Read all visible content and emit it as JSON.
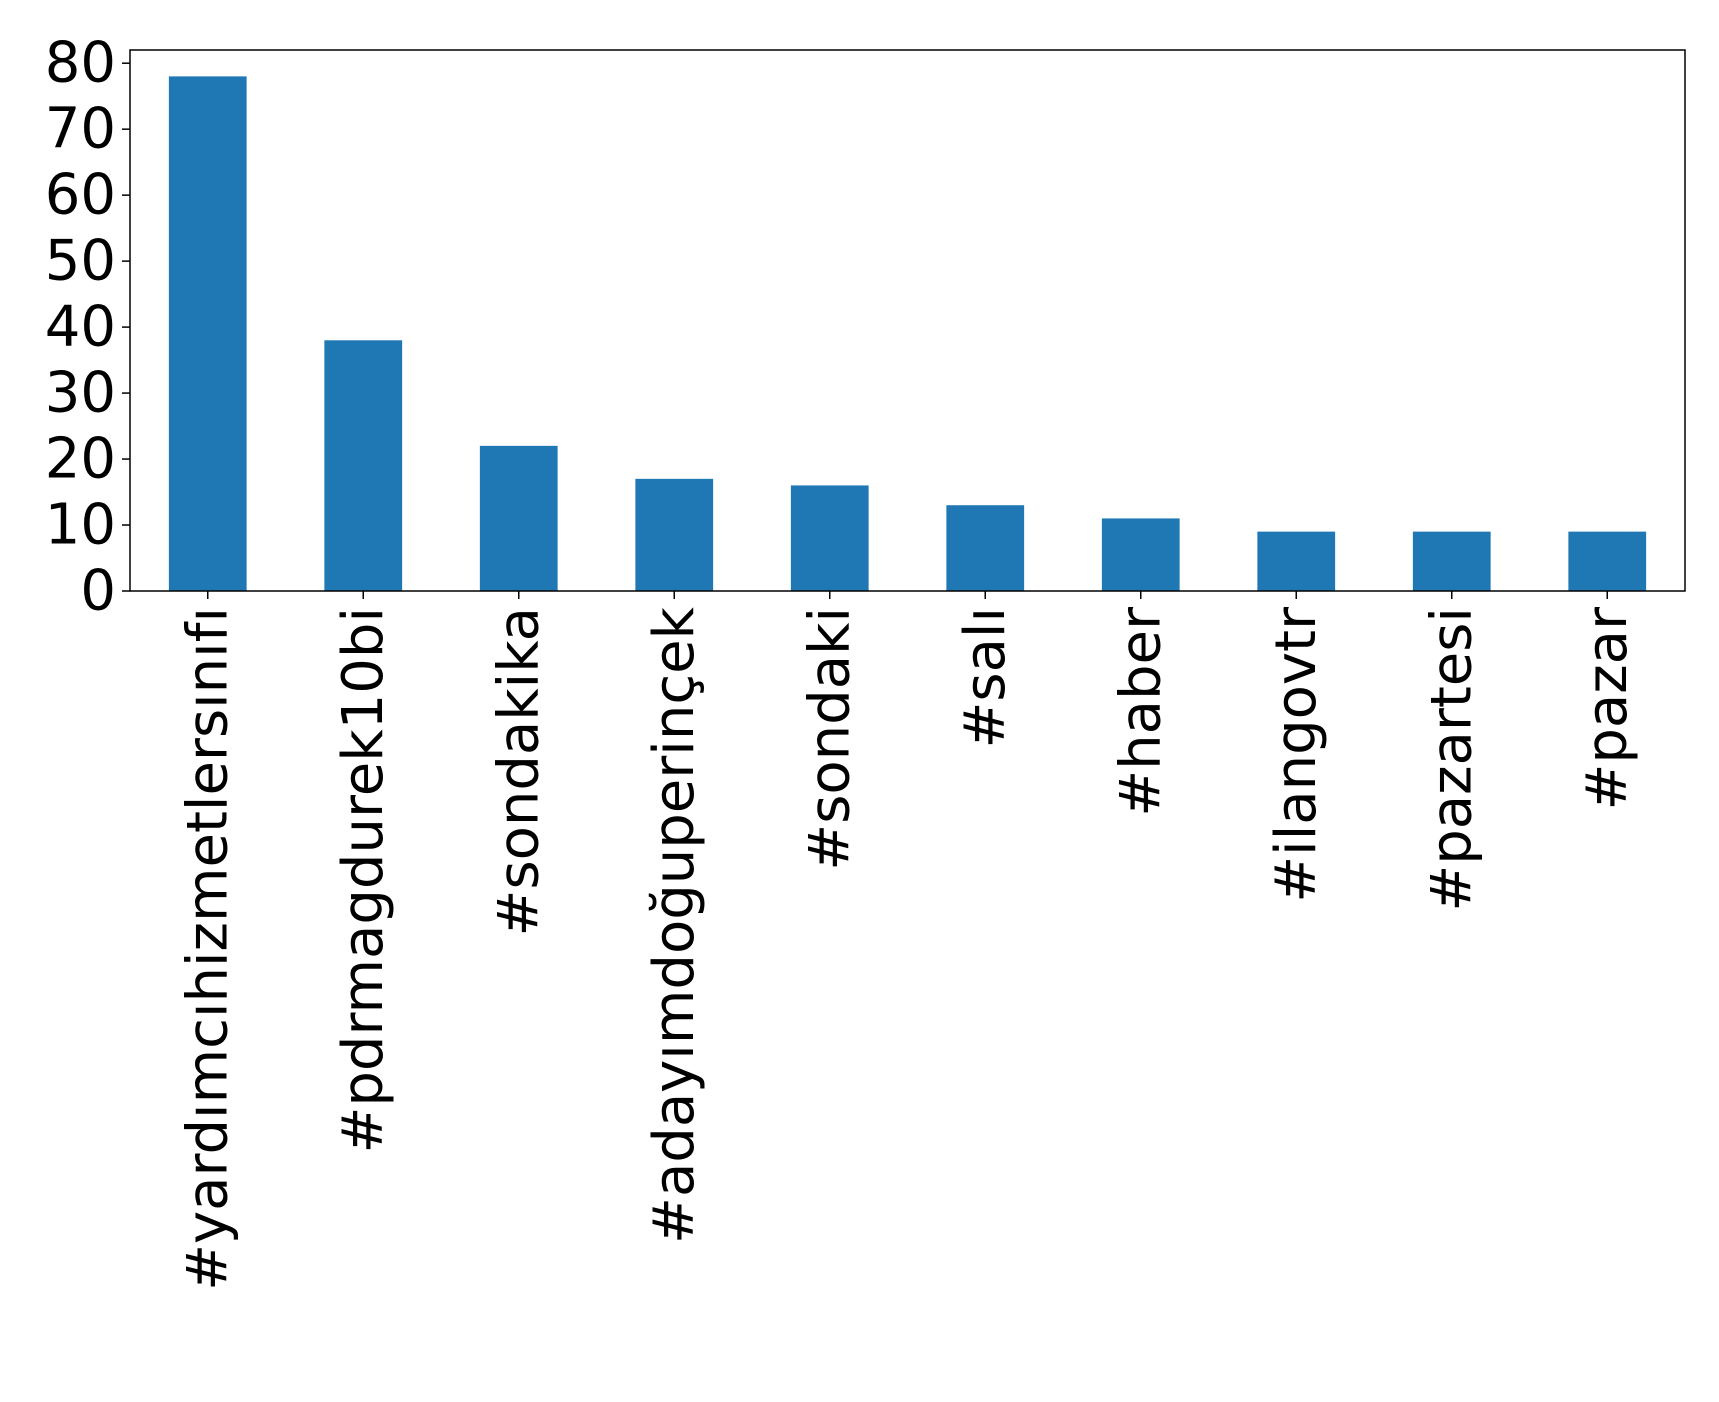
{
  "chart_data": {
    "type": "bar",
    "categories": [
      "#yardımcıhizmetlersınıfı",
      "#pdrmagdurek10bi",
      "#sondakika",
      "#adayımdoğuperinçek",
      "#sondaki",
      "#salı",
      "#haber",
      "#ilangovtr",
      "#pazartesi",
      "#pazar"
    ],
    "values": [
      78,
      38,
      22,
      17,
      16,
      13,
      11,
      9,
      9,
      9
    ],
    "title": "",
    "xlabel": "",
    "ylabel": "",
    "ylim": [
      0,
      82
    ],
    "yticks": [
      0,
      10,
      20,
      30,
      40,
      50,
      60,
      70,
      80
    ],
    "grid": false,
    "legend": "none",
    "bar_color": "#1f77b4"
  }
}
